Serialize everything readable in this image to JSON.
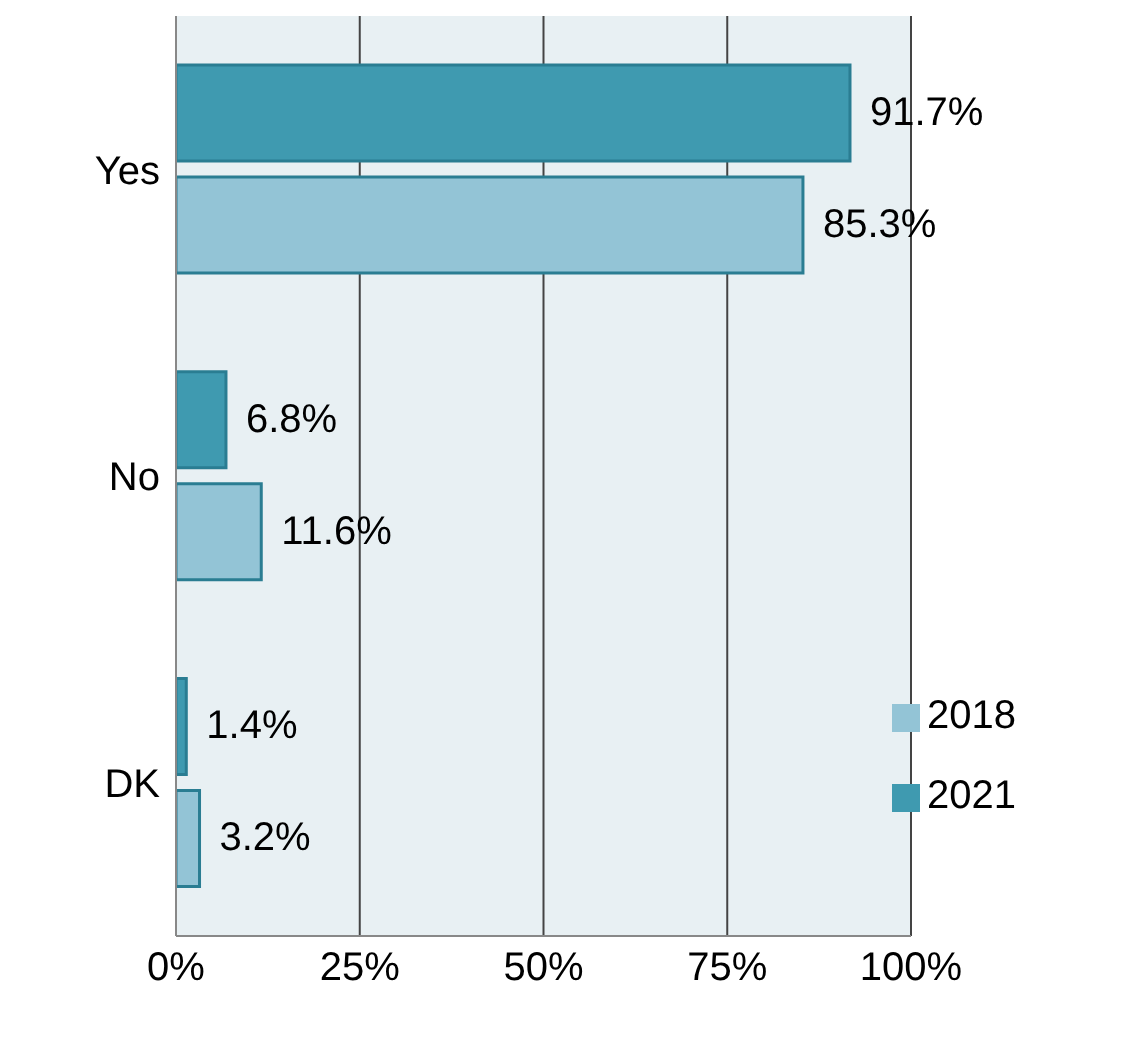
{
  "chart_data": {
    "type": "bar",
    "orientation": "horizontal",
    "categories": [
      "Yes",
      "No",
      "DK"
    ],
    "series": [
      {
        "name": "2021",
        "color": "#3f9ab0",
        "values": [
          91.7,
          6.8,
          1.4
        ],
        "value_labels": [
          "91.7%",
          "6.8%",
          "1.4%"
        ]
      },
      {
        "name": "2018",
        "color": "#93c4d6",
        "values": [
          85.3,
          11.6,
          3.2
        ],
        "value_labels": [
          "85.3%",
          "11.6%",
          "3.2%"
        ]
      }
    ],
    "xlim": [
      0,
      100
    ],
    "xticks": [
      {
        "value": 0,
        "label": "0%"
      },
      {
        "value": 25,
        "label": "25%"
      },
      {
        "value": 50,
        "label": "50%"
      },
      {
        "value": 75,
        "label": "75%"
      },
      {
        "value": 100,
        "label": "100%"
      }
    ],
    "grid": "x",
    "legend": "bottom right"
  }
}
